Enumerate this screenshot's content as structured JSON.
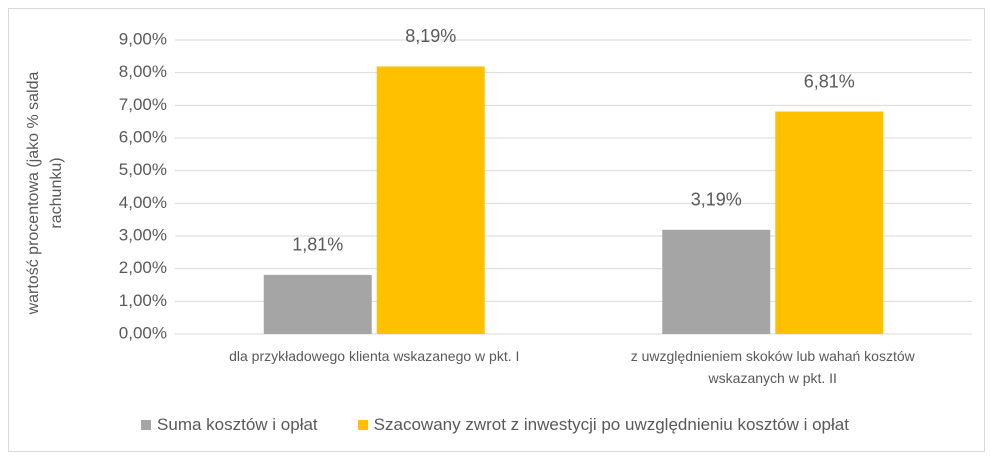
{
  "chart_data": {
    "type": "bar",
    "y_axis_label": "wartość procentowa (jako % salda rachunku)",
    "categories": [
      "dla przykładowego klienta wskazanego w pkt. I",
      "z uwzględnieniem skoków lub wahań kosztów wskazanych w pkt. II"
    ],
    "series": [
      {
        "name": "Suma kosztów i opłat",
        "color": "#a5a5a5",
        "values": [
          1.81,
          3.19
        ],
        "value_labels": [
          "1,81%",
          "3,19%"
        ]
      },
      {
        "name": "Szacowany zwrot z inwestycji po uwzględnieniu kosztów i opłat",
        "color": "#ffc000",
        "values": [
          8.19,
          6.81
        ],
        "value_labels": [
          "8,19%",
          "6,81%"
        ]
      }
    ],
    "ylim": [
      0,
      9
    ],
    "yticks": [
      {
        "value": 0,
        "label": "0,00%"
      },
      {
        "value": 1,
        "label": "1,00%"
      },
      {
        "value": 2,
        "label": "2,00%"
      },
      {
        "value": 3,
        "label": "3,00%"
      },
      {
        "value": 4,
        "label": "4,00%"
      },
      {
        "value": 5,
        "label": "5,00%"
      },
      {
        "value": 6,
        "label": "6,00%"
      },
      {
        "value": 7,
        "label": "7,00%"
      },
      {
        "value": 8,
        "label": "8,00%"
      },
      {
        "value": 9,
        "label": "9,00%"
      }
    ],
    "grid": true,
    "legend": "bottom"
  }
}
